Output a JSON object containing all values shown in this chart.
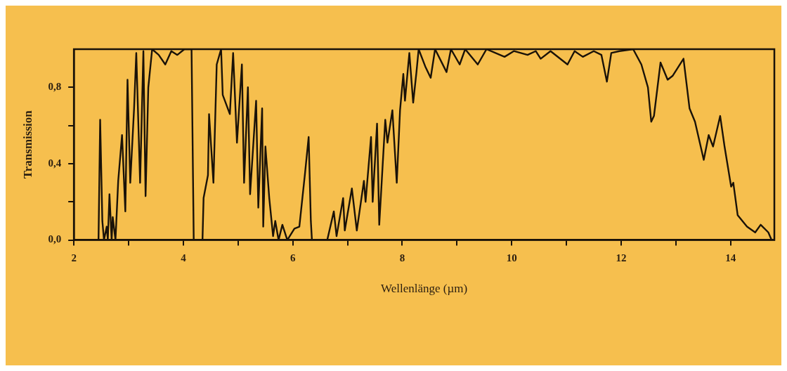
{
  "chart_data": {
    "type": "line",
    "xlabel": "Wellenlänge (µm)",
    "ylabel": "Transmission",
    "xlim": [
      2,
      14.8
    ],
    "xticks": [
      2,
      {
        "value": 3,
        "label": null
      },
      4,
      {
        "value": 5,
        "label": null
      },
      6,
      {
        "value": 7,
        "label": null
      },
      8,
      {
        "value": 9,
        "label": null
      },
      10,
      {
        "value": 11,
        "label": null
      },
      12,
      {
        "value": 13,
        "label": null
      },
      14
    ],
    "ylim": [
      0,
      1
    ],
    "yticks": [
      {
        "value": 0,
        "label": "0,0"
      },
      {
        "value": 0.2,
        "label": null
      },
      {
        "value": 0.4,
        "label": "0,4"
      },
      {
        "value": 0.6,
        "label": null
      },
      {
        "value": 0.8,
        "label": "0,8"
      }
    ],
    "grid": false,
    "legend": false,
    "marker": "none",
    "line_style": "solid",
    "series": [
      {
        "color": "#1a1208",
        "x": [
          2.45,
          2.48,
          2.52,
          2.55,
          2.6,
          2.62,
          2.65,
          2.69,
          2.71,
          2.76,
          2.81,
          2.88,
          2.94,
          2.98,
          3.03,
          3.1,
          3.14,
          3.21,
          3.27,
          3.31,
          3.36,
          3.43,
          3.55,
          3.67,
          3.78,
          3.89,
          4.02,
          4.15,
          4.19,
          4.35,
          4.37,
          4.45,
          4.47,
          4.55,
          4.61,
          4.69,
          4.72,
          4.85,
          4.91,
          4.98,
          5.07,
          5.11,
          5.18,
          5.22,
          5.33,
          5.37,
          5.44,
          5.46,
          5.5,
          5.57,
          5.64,
          5.68,
          5.74,
          5.81,
          5.9,
          6.03,
          6.12,
          6.22,
          6.29,
          6.33,
          6.35,
          6.5,
          6.63,
          6.75,
          6.8,
          6.92,
          6.95,
          7.08,
          7.17,
          7.3,
          7.33,
          7.43,
          7.46,
          7.54,
          7.58,
          7.69,
          7.73,
          7.82,
          7.9,
          7.96,
          8.02,
          8.05,
          8.13,
          8.2,
          8.26,
          8.3,
          8.42,
          8.52,
          8.6,
          8.81,
          8.89,
          9.05,
          9.15,
          9.38,
          9.54,
          9.87,
          10.04,
          10.29,
          10.44,
          10.53,
          10.71,
          11.02,
          11.15,
          11.3,
          11.5,
          11.64,
          11.74,
          11.82,
          11.97,
          12.22,
          12.37,
          12.49,
          12.55,
          12.6,
          12.72,
          12.85,
          12.94,
          13.14,
          13.25,
          13.35,
          13.51,
          13.6,
          13.68,
          13.81,
          13.89,
          14.01,
          14.05,
          14.13,
          14.3,
          14.45,
          14.55,
          14.69,
          14.75
        ],
        "values": [
          0,
          0.63,
          0.1,
          0,
          0.07,
          0,
          0.24,
          0,
          0.12,
          0,
          0.31,
          0.55,
          0.15,
          0.84,
          0.3,
          0.69,
          0.98,
          0.3,
          0.99,
          0.23,
          0.8,
          1,
          0.97,
          0.92,
          0.99,
          0.97,
          1,
          1,
          0,
          0,
          0.22,
          0.34,
          0.66,
          0.3,
          0.92,
          1,
          0.76,
          0.66,
          0.98,
          0.51,
          0.92,
          0.3,
          0.8,
          0.24,
          0.73,
          0.17,
          0.69,
          0.07,
          0.49,
          0.22,
          0.02,
          0.1,
          0,
          0.08,
          0,
          0.06,
          0.07,
          0.34,
          0.54,
          0.1,
          0,
          0,
          0,
          0.15,
          0.02,
          0.22,
          0.05,
          0.27,
          0.05,
          0.31,
          0.2,
          0.54,
          0.2,
          0.61,
          0.08,
          0.63,
          0.51,
          0.68,
          0.3,
          0.68,
          0.87,
          0.73,
          0.98,
          0.72,
          0.88,
          1,
          0.91,
          0.85,
          1,
          0.88,
          1,
          0.92,
          1,
          0.92,
          1,
          0.96,
          0.99,
          0.97,
          0.99,
          0.95,
          0.99,
          0.92,
          0.99,
          0.96,
          0.99,
          0.97,
          0.83,
          0.98,
          0.99,
          1,
          0.92,
          0.8,
          0.62,
          0.65,
          0.93,
          0.84,
          0.86,
          0.95,
          0.69,
          0.62,
          0.42,
          0.55,
          0.49,
          0.65,
          0.49,
          0.28,
          0.3,
          0.13,
          0.07,
          0.04,
          0.08,
          0.04,
          0
        ]
      }
    ]
  }
}
